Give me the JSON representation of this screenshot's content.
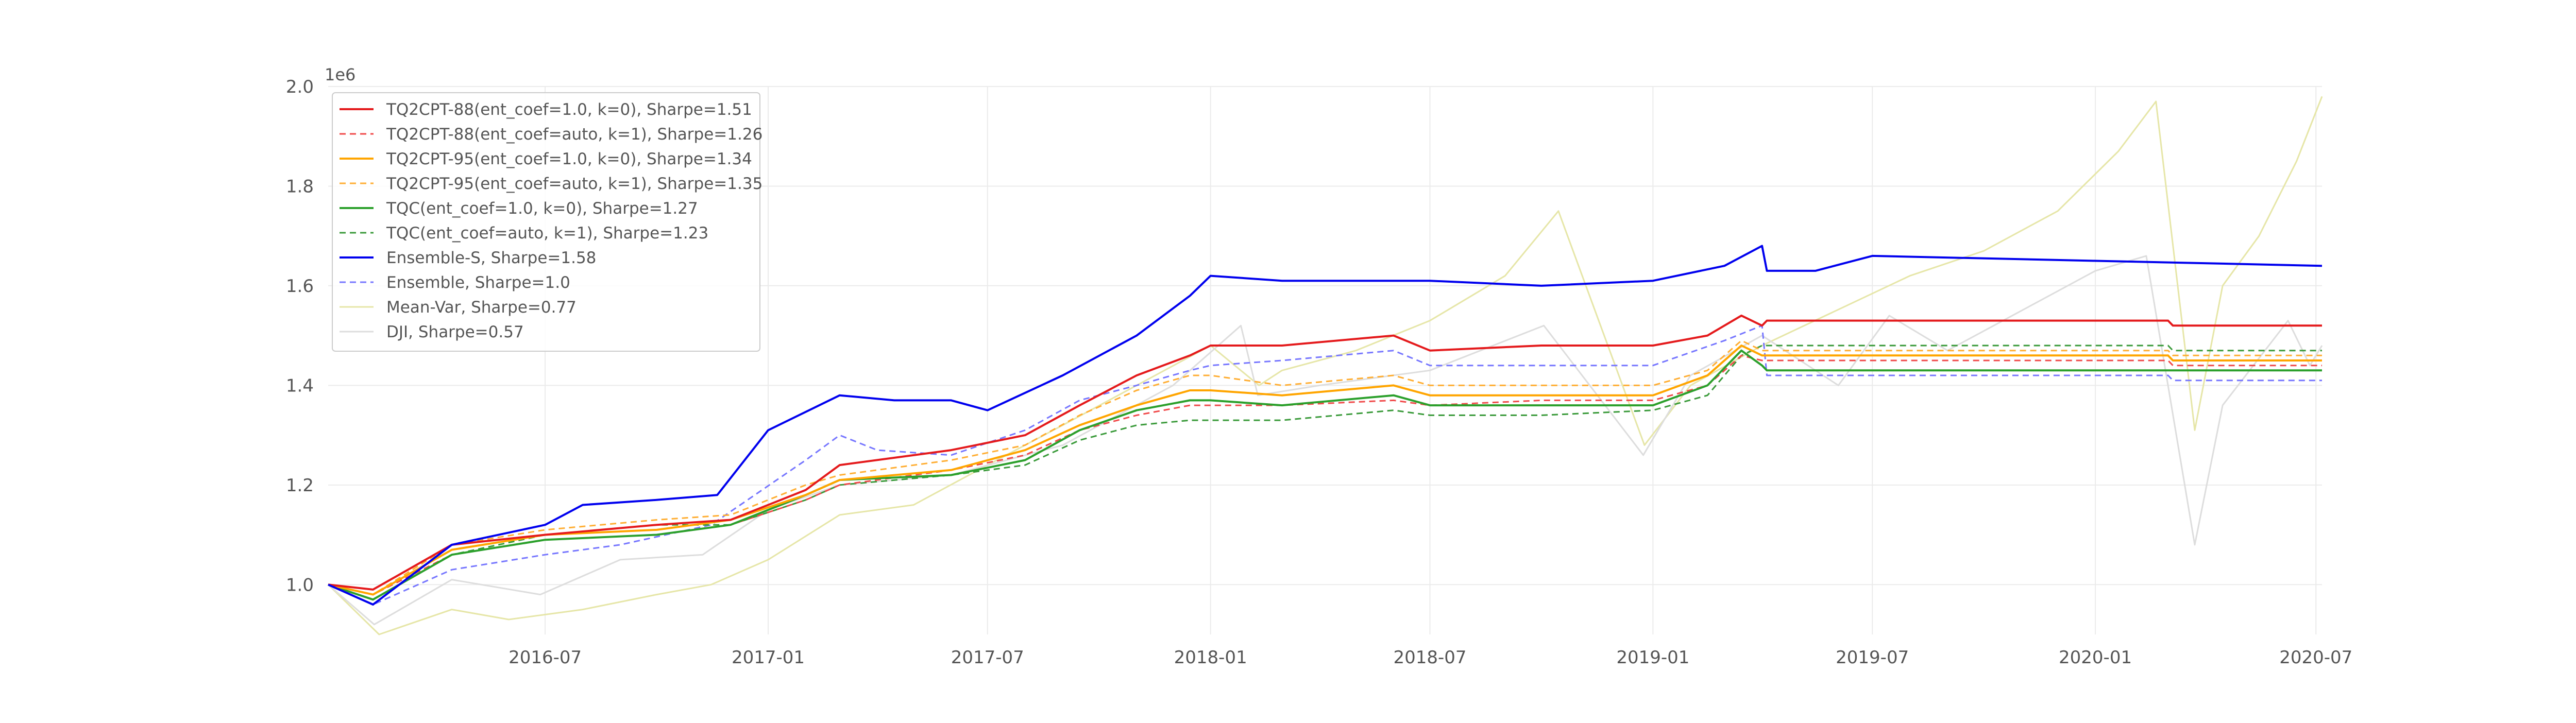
{
  "chart_data": {
    "type": "line",
    "title": "",
    "xlabel": "",
    "ylabel": "",
    "y_offset_label": "1e6",
    "x_range": [
      "2016-01-04",
      "2020-07-06"
    ],
    "ylim": [
      0.9,
      2.0
    ],
    "x_ticks": [
      "2016-07",
      "2017-01",
      "2017-07",
      "2018-01",
      "2018-07",
      "2019-01",
      "2019-07",
      "2020-01",
      "2020-07"
    ],
    "y_ticks": [
      "1.0",
      "1.2",
      "1.4",
      "1.6",
      "1.8",
      "2.0"
    ],
    "grid": true,
    "legend_position": "top-left",
    "series": [
      {
        "name": "TQ2CPT-88(ent_coef=1.0, k=0), Sharpe=1.51",
        "color": "#e41a1c",
        "dash": "solid",
        "width": 4,
        "x": [
          "2016-01-04",
          "2016-02-10",
          "2016-04-15",
          "2016-07-01",
          "2016-10-01",
          "2016-12-01",
          "2017-02-01",
          "2017-03-01",
          "2017-06-01",
          "2017-08-01",
          "2017-09-15",
          "2017-11-01",
          "2017-12-15",
          "2018-01-01",
          "2018-03-01",
          "2018-06-01",
          "2018-07-01",
          "2018-10-01",
          "2019-01-01",
          "2019-02-15",
          "2019-03-15",
          "2019-04-01",
          "2019-04-05",
          "2019-07-01",
          "2020-01-01",
          "2020-03-01",
          "2020-03-05",
          "2020-07-06"
        ],
        "y": [
          1.0,
          0.99,
          1.08,
          1.1,
          1.12,
          1.13,
          1.19,
          1.24,
          1.27,
          1.3,
          1.36,
          1.42,
          1.46,
          1.48,
          1.48,
          1.5,
          1.47,
          1.48,
          1.48,
          1.5,
          1.54,
          1.52,
          1.53,
          1.53,
          1.53,
          1.53,
          1.52,
          1.52
        ]
      },
      {
        "name": "TQ2CPT-88(ent_coef=auto, k=1), Sharpe=1.26",
        "color": "#f04a4a",
        "dash": "12,8",
        "width": 3,
        "x": [
          "2016-01-04",
          "2016-02-10",
          "2016-04-15",
          "2016-07-01",
          "2016-10-01",
          "2016-12-01",
          "2017-02-01",
          "2017-03-01",
          "2017-06-01",
          "2017-08-01",
          "2017-09-15",
          "2017-11-01",
          "2017-12-15",
          "2018-01-01",
          "2018-03-01",
          "2018-06-01",
          "2018-07-01",
          "2018-10-01",
          "2019-01-01",
          "2019-02-15",
          "2019-03-15",
          "2019-04-01",
          "2019-04-05",
          "2019-07-01",
          "2020-01-01",
          "2020-03-01",
          "2020-03-05",
          "2020-07-06"
        ],
        "y": [
          1.0,
          0.98,
          1.06,
          1.09,
          1.1,
          1.12,
          1.17,
          1.2,
          1.23,
          1.26,
          1.31,
          1.34,
          1.36,
          1.36,
          1.36,
          1.37,
          1.36,
          1.37,
          1.37,
          1.4,
          1.46,
          1.45,
          1.45,
          1.45,
          1.45,
          1.45,
          1.44,
          1.44
        ]
      },
      {
        "name": "TQ2CPT-95(ent_coef=1.0, k=0), Sharpe=1.34",
        "color": "#ffa500",
        "dash": "solid",
        "width": 4,
        "x": [
          "2016-01-04",
          "2016-02-10",
          "2016-04-15",
          "2016-07-01",
          "2016-10-01",
          "2016-12-01",
          "2017-02-01",
          "2017-03-01",
          "2017-06-01",
          "2017-08-01",
          "2017-09-15",
          "2017-11-01",
          "2017-12-15",
          "2018-01-01",
          "2018-03-01",
          "2018-06-01",
          "2018-07-01",
          "2018-10-01",
          "2019-01-01",
          "2019-02-15",
          "2019-03-15",
          "2019-04-01",
          "2019-04-05",
          "2019-07-01",
          "2020-01-01",
          "2020-03-01",
          "2020-03-05",
          "2020-07-06"
        ],
        "y": [
          1.0,
          0.98,
          1.07,
          1.1,
          1.11,
          1.13,
          1.18,
          1.21,
          1.23,
          1.27,
          1.32,
          1.36,
          1.39,
          1.39,
          1.38,
          1.4,
          1.38,
          1.38,
          1.38,
          1.42,
          1.48,
          1.46,
          1.46,
          1.46,
          1.46,
          1.46,
          1.45,
          1.45
        ]
      },
      {
        "name": "TQ2CPT-95(ent_coef=auto, k=1), Sharpe=1.35",
        "color": "#ffae33",
        "dash": "12,8",
        "width": 3,
        "x": [
          "2016-01-04",
          "2016-02-10",
          "2016-04-15",
          "2016-07-01",
          "2016-10-01",
          "2016-12-01",
          "2017-02-01",
          "2017-03-01",
          "2017-06-01",
          "2017-08-01",
          "2017-09-15",
          "2017-11-01",
          "2017-12-15",
          "2018-01-01",
          "2018-03-01",
          "2018-06-01",
          "2018-07-01",
          "2018-10-01",
          "2019-01-01",
          "2019-02-15",
          "2019-03-15",
          "2019-04-01",
          "2019-04-05",
          "2019-07-01",
          "2020-01-01",
          "2020-03-01",
          "2020-03-05",
          "2020-07-06"
        ],
        "y": [
          1.0,
          0.98,
          1.08,
          1.11,
          1.13,
          1.14,
          1.2,
          1.22,
          1.25,
          1.28,
          1.34,
          1.39,
          1.42,
          1.42,
          1.4,
          1.42,
          1.4,
          1.4,
          1.4,
          1.43,
          1.49,
          1.47,
          1.47,
          1.47,
          1.47,
          1.47,
          1.46,
          1.46
        ]
      },
      {
        "name": "TQC(ent_coef=1.0, k=0), Sharpe=1.27",
        "color": "#2ca02c",
        "dash": "solid",
        "width": 4,
        "x": [
          "2016-01-04",
          "2016-02-10",
          "2016-04-15",
          "2016-07-01",
          "2016-10-01",
          "2016-12-01",
          "2017-02-01",
          "2017-03-01",
          "2017-06-01",
          "2017-08-01",
          "2017-09-15",
          "2017-11-01",
          "2017-12-15",
          "2018-01-01",
          "2018-03-01",
          "2018-06-01",
          "2018-07-01",
          "2018-10-01",
          "2019-01-01",
          "2019-02-15",
          "2019-03-15",
          "2019-04-01",
          "2019-04-05",
          "2019-07-01",
          "2020-01-01",
          "2020-03-01",
          "2020-03-05",
          "2020-07-06"
        ],
        "y": [
          1.0,
          0.97,
          1.06,
          1.09,
          1.1,
          1.12,
          1.18,
          1.21,
          1.22,
          1.25,
          1.31,
          1.35,
          1.37,
          1.37,
          1.36,
          1.38,
          1.36,
          1.36,
          1.36,
          1.4,
          1.47,
          1.44,
          1.43,
          1.43,
          1.43,
          1.43,
          1.43,
          1.43
        ]
      },
      {
        "name": "TQC(ent_coef=auto, k=1), Sharpe=1.23",
        "color": "#3a9a3a",
        "dash": "12,8",
        "width": 3,
        "x": [
          "2016-01-04",
          "2016-02-10",
          "2016-04-15",
          "2016-07-01",
          "2016-10-01",
          "2016-12-01",
          "2017-02-01",
          "2017-03-01",
          "2017-06-01",
          "2017-08-01",
          "2017-09-15",
          "2017-11-01",
          "2017-12-15",
          "2018-01-01",
          "2018-03-01",
          "2018-06-01",
          "2018-07-01",
          "2018-10-01",
          "2019-01-01",
          "2019-02-15",
          "2019-03-15",
          "2019-04-01",
          "2019-04-05",
          "2019-07-01",
          "2020-01-01",
          "2020-03-01",
          "2020-03-05",
          "2020-07-06"
        ],
        "y": [
          1.0,
          0.97,
          1.06,
          1.1,
          1.12,
          1.12,
          1.17,
          1.2,
          1.22,
          1.24,
          1.29,
          1.32,
          1.33,
          1.33,
          1.33,
          1.35,
          1.34,
          1.34,
          1.35,
          1.38,
          1.46,
          1.48,
          1.48,
          1.48,
          1.48,
          1.48,
          1.47,
          1.47
        ]
      },
      {
        "name": "Ensemble-S, Sharpe=1.58",
        "color": "#0000ee",
        "dash": "solid",
        "width": 4,
        "x": [
          "2016-01-04",
          "2016-02-10",
          "2016-04-15",
          "2016-07-01",
          "2016-08-01",
          "2016-10-01",
          "2016-11-20",
          "2017-01-01",
          "2017-03-01",
          "2017-04-15",
          "2017-06-01",
          "2017-07-01",
          "2017-09-01",
          "2017-11-01",
          "2017-12-15",
          "2018-01-01",
          "2018-03-01",
          "2018-06-01",
          "2018-07-01",
          "2018-10-01",
          "2019-01-01",
          "2019-03-01",
          "2019-04-01",
          "2019-04-05",
          "2019-05-15",
          "2019-07-01",
          "2020-01-01",
          "2020-07-06"
        ],
        "y": [
          1.0,
          0.96,
          1.08,
          1.12,
          1.16,
          1.17,
          1.18,
          1.31,
          1.38,
          1.37,
          1.37,
          1.35,
          1.42,
          1.5,
          1.58,
          1.62,
          1.61,
          1.61,
          1.61,
          1.6,
          1.61,
          1.64,
          1.68,
          1.63,
          1.63,
          1.66,
          1.65,
          1.64
        ]
      },
      {
        "name": "Ensemble, Sharpe=1.0",
        "color": "#7777ff",
        "dash": "12,8",
        "width": 3,
        "x": [
          "2016-01-04",
          "2016-02-10",
          "2016-04-15",
          "2016-07-01",
          "2016-09-01",
          "2016-11-15",
          "2017-02-01",
          "2017-03-01",
          "2017-04-01",
          "2017-06-01",
          "2017-08-01",
          "2017-09-15",
          "2017-11-01",
          "2017-12-15",
          "2018-01-01",
          "2018-03-01",
          "2018-06-01",
          "2018-07-01",
          "2018-10-01",
          "2019-01-01",
          "2019-03-01",
          "2019-04-01",
          "2019-04-05",
          "2019-07-01",
          "2020-01-01",
          "2020-03-01",
          "2020-03-05",
          "2020-07-06"
        ],
        "y": [
          1.0,
          0.96,
          1.03,
          1.06,
          1.08,
          1.12,
          1.25,
          1.3,
          1.27,
          1.26,
          1.31,
          1.37,
          1.4,
          1.43,
          1.44,
          1.45,
          1.47,
          1.44,
          1.44,
          1.44,
          1.49,
          1.52,
          1.42,
          1.42,
          1.42,
          1.42,
          1.41,
          1.41
        ]
      },
      {
        "name": "Mean-Var, Sharpe=0.77",
        "color": "#e6e6a8",
        "dash": "solid",
        "width": 3,
        "x": [
          "2016-01-04",
          "2016-02-15",
          "2016-04-15",
          "2016-06-01",
          "2016-08-01",
          "2016-10-01",
          "2016-11-15",
          "2017-01-01",
          "2017-03-01",
          "2017-05-01",
          "2017-07-01",
          "2017-09-01",
          "2017-11-01",
          "2018-01-01",
          "2018-02-10",
          "2018-03-01",
          "2018-05-01",
          "2018-07-01",
          "2018-09-01",
          "2018-10-15",
          "2018-12-25",
          "2019-02-01",
          "2019-04-01",
          "2019-06-01",
          "2019-08-01",
          "2019-10-01",
          "2019-12-01",
          "2020-01-20",
          "2020-02-20",
          "2020-03-23",
          "2020-04-15",
          "2020-05-15",
          "2020-06-15",
          "2020-07-06"
        ],
        "y": [
          1.0,
          0.9,
          0.95,
          0.93,
          0.95,
          0.98,
          1.0,
          1.05,
          1.14,
          1.16,
          1.24,
          1.32,
          1.4,
          1.48,
          1.4,
          1.43,
          1.47,
          1.53,
          1.62,
          1.75,
          1.28,
          1.4,
          1.48,
          1.55,
          1.62,
          1.67,
          1.75,
          1.87,
          1.97,
          1.31,
          1.6,
          1.7,
          1.85,
          1.98
        ]
      },
      {
        "name": "DJI, Sharpe=0.57",
        "color": "#dddddd",
        "dash": "solid",
        "width": 3,
        "x": [
          "2016-01-04",
          "2016-02-11",
          "2016-04-15",
          "2016-06-27",
          "2016-09-01",
          "2016-11-08",
          "2017-01-01",
          "2017-03-01",
          "2017-06-01",
          "2017-09-01",
          "2017-12-01",
          "2018-01-26",
          "2018-02-09",
          "2018-04-01",
          "2018-07-01",
          "2018-10-03",
          "2018-12-24",
          "2019-02-01",
          "2019-04-01",
          "2019-06-03",
          "2019-07-15",
          "2019-09-01",
          "2019-11-01",
          "2020-01-01",
          "2020-02-12",
          "2020-03-23",
          "2020-04-15",
          "2020-06-08",
          "2020-06-26",
          "2020-07-06"
        ],
        "y": [
          1.0,
          0.92,
          1.01,
          0.98,
          1.05,
          1.06,
          1.15,
          1.2,
          1.22,
          1.28,
          1.4,
          1.52,
          1.38,
          1.4,
          1.43,
          1.52,
          1.26,
          1.42,
          1.5,
          1.4,
          1.54,
          1.47,
          1.55,
          1.63,
          1.66,
          1.08,
          1.36,
          1.53,
          1.44,
          1.48
        ]
      }
    ]
  }
}
